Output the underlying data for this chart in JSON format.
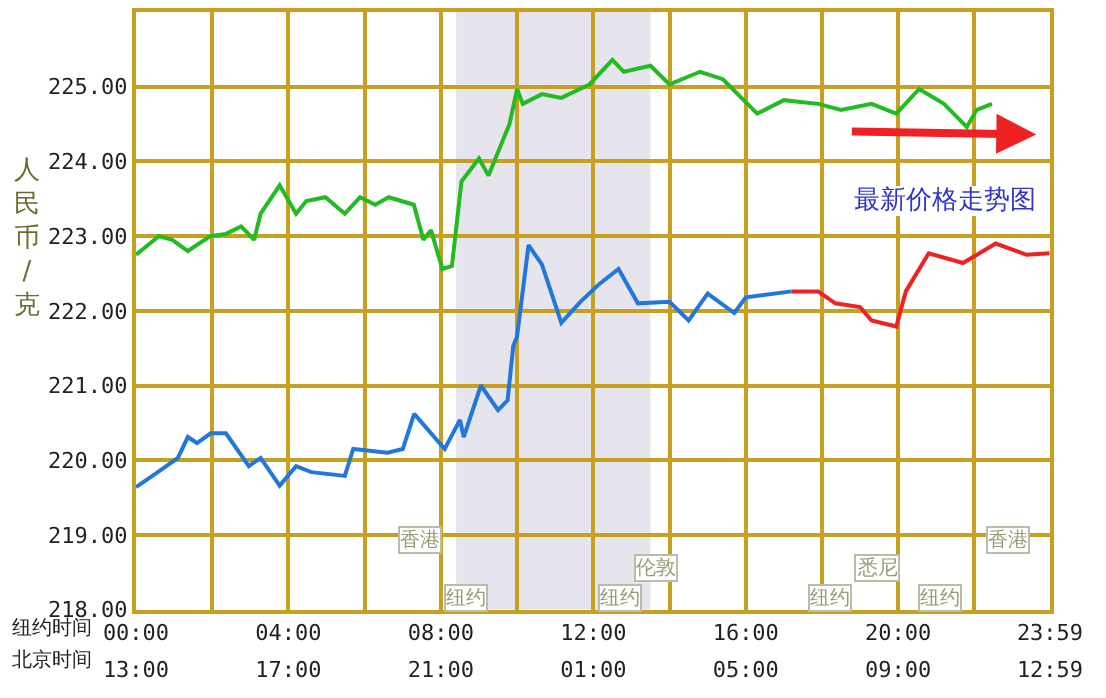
{
  "chart_data": {
    "type": "line",
    "ylabel": "人民币/克",
    "xlabel": "纽约时间",
    "x2label": "北京时间",
    "xlim": [
      0,
      23.983
    ],
    "ylim": [
      218,
      226
    ],
    "x2lim": [
      "2000-01-01T13:00",
      "2000-01-02T12:59"
    ],
    "xticks": [
      {
        "value": 0,
        "label": "00:00"
      },
      {
        "value": 2,
        "label": null
      },
      {
        "value": 4,
        "label": "04:00"
      },
      {
        "value": 6,
        "label": null
      },
      {
        "value": 8,
        "label": "08:00"
      },
      {
        "value": 10,
        "label": null
      },
      {
        "value": 12,
        "label": "12:00"
      },
      {
        "value": 14,
        "label": null
      },
      {
        "value": 16,
        "label": "16:00"
      },
      {
        "value": 18,
        "label": null
      },
      {
        "value": 20,
        "label": "20:00"
      },
      {
        "value": 22,
        "label": null
      },
      {
        "value": 23.983,
        "label": "23:59"
      }
    ],
    "x2ticks": [
      {
        "value": "2000-01-01T13:00",
        "label": "13:00"
      },
      {
        "value": "2000-01-01T17:00",
        "label": "17:00"
      },
      {
        "value": "2000-01-01T21:00",
        "label": "21:00"
      },
      {
        "value": "2000-01-02T01:00",
        "label": "01:00"
      },
      {
        "value": "2000-01-02T05:00",
        "label": "05:00"
      },
      {
        "value": "2000-01-02T09:00",
        "label": "09:00"
      },
      {
        "value": "2000-01-02T12:59",
        "label": "12:59"
      }
    ],
    "yticks": [
      {
        "value": 218,
        "label": "218.00"
      },
      {
        "value": 219,
        "label": "219.00"
      },
      {
        "value": 220,
        "label": "220.00"
      },
      {
        "value": 221,
        "label": "221.00"
      },
      {
        "value": 222,
        "label": "222.00"
      },
      {
        "value": 223,
        "label": "223.00"
      },
      {
        "value": 224,
        "label": "224.00"
      },
      {
        "value": 225,
        "label": "225.00"
      }
    ],
    "grid": true,
    "marker": "none",
    "line_style": "solid",
    "bands": [
      {
        "axis": "x",
        "from": 8.4,
        "to": 13.5,
        "color": "#e6e4ec"
      }
    ],
    "series": [
      {
        "color": "#22bb22",
        "x": [
          0,
          0.6,
          0.95,
          1.36,
          1.95,
          2.36,
          2.76,
          3.1,
          3.27,
          3.77,
          4.2,
          4.47,
          4.97,
          5.48,
          5.88,
          6.28,
          6.63,
          7.29,
          7.54,
          7.74,
          8.04,
          8.29,
          8.54,
          9.0,
          9.25,
          9.8,
          10.0,
          10.15,
          10.65,
          11.16,
          11.9,
          12.5,
          12.8,
          13.5,
          14.0,
          14.8,
          15.4,
          16.3,
          17.0,
          17.9,
          18.5,
          19.3,
          19.95,
          20.55,
          21.2,
          21.8,
          22.06,
          22.46
        ],
        "values": [
          222.75,
          223.0,
          222.95,
          222.8,
          223.0,
          223.03,
          223.13,
          222.95,
          223.3,
          223.68,
          223.3,
          223.47,
          223.52,
          223.3,
          223.52,
          223.42,
          223.52,
          223.42,
          222.95,
          223.08,
          222.56,
          222.6,
          223.73,
          224.04,
          223.81,
          224.5,
          224.97,
          224.77,
          224.9,
          224.85,
          225.03,
          225.36,
          225.2,
          225.28,
          225.03,
          225.2,
          225.1,
          224.64,
          224.82,
          224.77,
          224.69,
          224.77,
          224.64,
          224.97,
          224.77,
          224.46,
          224.69,
          224.77
        ]
      },
      {
        "color": "#2277dd",
        "x": [
          0,
          0.6,
          1.1,
          1.36,
          1.6,
          1.96,
          2.36,
          2.96,
          3.27,
          3.77,
          4.2,
          4.6,
          5.48,
          5.7,
          6.6,
          7.0,
          7.3,
          8.1,
          8.5,
          8.6,
          9.05,
          9.5,
          9.75,
          9.9,
          10.0,
          10.3,
          10.65,
          11.16,
          11.66,
          12.16,
          12.66,
          13.17,
          14.0,
          14.5,
          15.0,
          15.7,
          16.0,
          17.2
        ],
        "values": [
          219.64,
          219.85,
          220.03,
          220.31,
          220.23,
          220.36,
          220.36,
          219.92,
          220.03,
          219.66,
          219.92,
          219.84,
          219.79,
          220.15,
          220.1,
          220.15,
          220.62,
          220.15,
          220.54,
          220.31,
          221.0,
          220.67,
          220.8,
          221.53,
          221.66,
          222.88,
          222.62,
          221.84,
          222.12,
          222.36,
          222.56,
          222.1,
          222.12,
          221.87,
          222.23,
          221.97,
          222.18,
          222.26
        ]
      },
      {
        "color": "#ee2222",
        "x": [
          17.2,
          17.9,
          18.35,
          19.0,
          19.3,
          19.95,
          20.2,
          20.8,
          21.7,
          22.56,
          23.37,
          23.97
        ],
        "values": [
          222.26,
          222.26,
          222.1,
          222.05,
          221.87,
          221.79,
          222.26,
          222.77,
          222.64,
          222.9,
          222.75,
          222.77
        ]
      }
    ],
    "annotations": [
      "最新价格走势图",
      "香港",
      "伦敦",
      "纽约",
      "纽约",
      "纽约",
      "香港",
      "悉尼",
      "纽约"
    ]
  }
}
